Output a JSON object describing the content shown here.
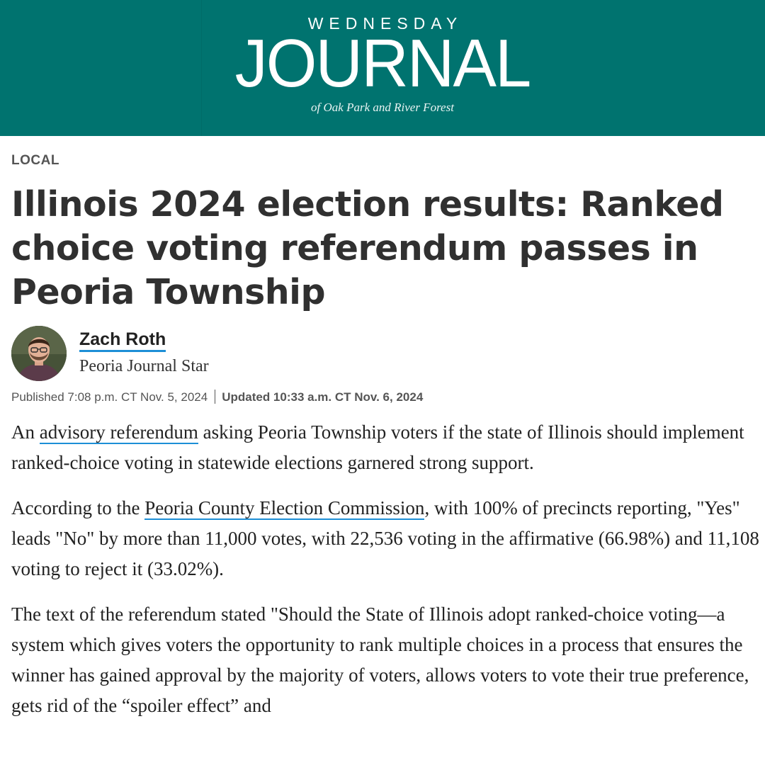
{
  "masthead": {
    "kicker": "WEDNESDAY",
    "title": "JOURNAL",
    "tagline": "of Oak Park and River Forest",
    "background_color": "#00736f"
  },
  "article": {
    "section": "LOCAL",
    "headline": "Illinois 2024 election results: Ranked choice voting referendum passes in Peoria Township",
    "author": {
      "name": "Zach Roth",
      "organization": "Peoria Journal Star"
    },
    "published": "Published 7:08 p.m. CT Nov. 5, 2024",
    "updated": "Updated 10:33 a.m. CT Nov. 6, 2024",
    "paragraphs": [
      {
        "before": "An ",
        "link": "advisory referendum",
        "after": " asking Peoria Township voters if the state of Illinois should implement ranked-choice voting in statewide elections garnered strong support."
      },
      {
        "before": "According to the ",
        "link": "Peoria County Election Commission",
        "after": ", with 100% of precincts reporting, \"Yes\" leads \"No\" by more than 11,000 votes, with 22,536 voting in the affirmative (66.98%) and 11,108 voting to reject it (33.02%)."
      },
      {
        "text": "The text of the referendum stated \"Should the State of Illinois adopt ranked-choice voting—a system which gives voters the opportunity to rank multiple choices in a process that ensures the winner has gained approval by the majority of voters, allows voters to vote their true preference, gets rid of the “spoiler effect” and"
      }
    ],
    "link_underline_color": "#1d8fd6"
  }
}
